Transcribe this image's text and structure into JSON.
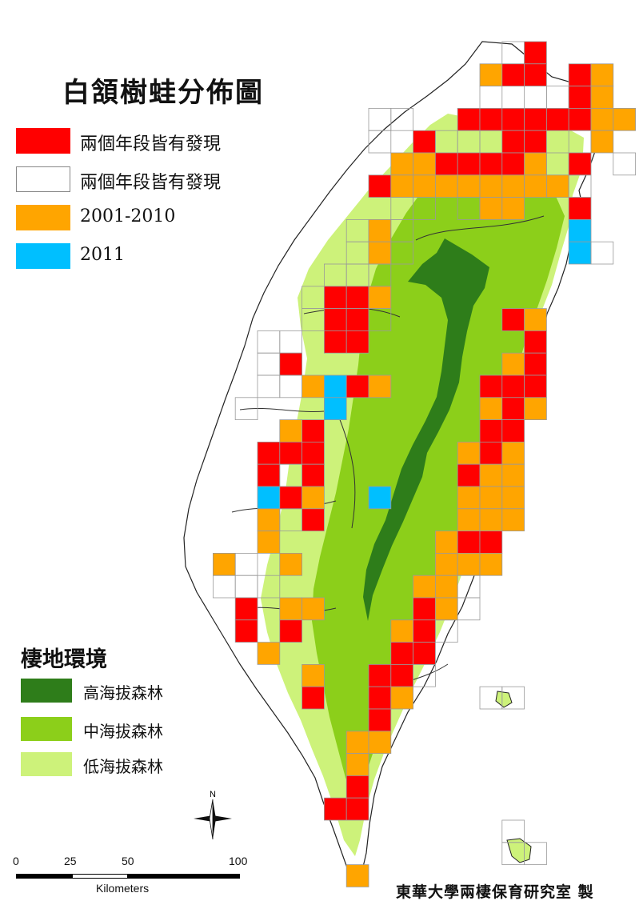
{
  "title": "白頷樹蛙分佈圖",
  "legend": {
    "items": [
      {
        "label": "兩個年段皆有發現",
        "color": "#ff0000"
      },
      {
        "label": "兩個年段皆有發現",
        "color": "#ffffff"
      },
      {
        "label": "2001-2010",
        "color": "#ffa500"
      },
      {
        "label": "2011",
        "color": "#00bfff"
      }
    ]
  },
  "habitat": {
    "title": "棲地環境",
    "items": [
      {
        "label": "高海拔森林",
        "color": "#2e7d1a"
      },
      {
        "label": "中海拔森林",
        "color": "#8ccf1a"
      },
      {
        "label": "低海拔森林",
        "color": "#cdf27a"
      }
    ]
  },
  "north_label": "N",
  "scale_bar": {
    "ticks": [
      "0",
      "25",
      "50",
      "100"
    ],
    "unit": "Kilometers"
  },
  "credit": "東華大學兩棲保育研究室 製"
}
